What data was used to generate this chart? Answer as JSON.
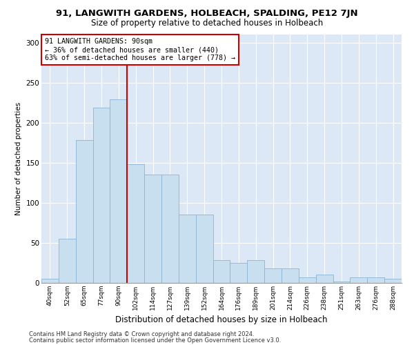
{
  "title": "91, LANGWITH GARDENS, HOLBEACH, SPALDING, PE12 7JN",
  "subtitle": "Size of property relative to detached houses in Holbeach",
  "xlabel": "Distribution of detached houses by size in Holbeach",
  "ylabel": "Number of detached properties",
  "footnote1": "Contains HM Land Registry data © Crown copyright and database right 2024.",
  "footnote2": "Contains public sector information licensed under the Open Government Licence v3.0.",
  "annotation_line1": "91 LANGWITH GARDENS: 90sqm",
  "annotation_line2": "← 36% of detached houses are smaller (440)",
  "annotation_line3": "63% of semi-detached houses are larger (778) →",
  "bar_color": "#c8dff0",
  "bar_edge_color": "#8ab4d4",
  "marker_line_color": "#cc0000",
  "bg_color": "#dce8f5",
  "categories": [
    "40sqm",
    "52sqm",
    "65sqm",
    "77sqm",
    "90sqm",
    "102sqm",
    "114sqm",
    "127sqm",
    "139sqm",
    "152sqm",
    "164sqm",
    "176sqm",
    "189sqm",
    "201sqm",
    "214sqm",
    "226sqm",
    "238sqm",
    "251sqm",
    "263sqm",
    "276sqm",
    "288sqm"
  ],
  "values": [
    5,
    55,
    178,
    219,
    229,
    148,
    135,
    135,
    85,
    85,
    28,
    25,
    28,
    18,
    18,
    7,
    10,
    2,
    7,
    7,
    5
  ],
  "ylim": [
    0,
    310
  ],
  "yticks": [
    0,
    50,
    100,
    150,
    200,
    250,
    300
  ],
  "prop_idx": 4
}
